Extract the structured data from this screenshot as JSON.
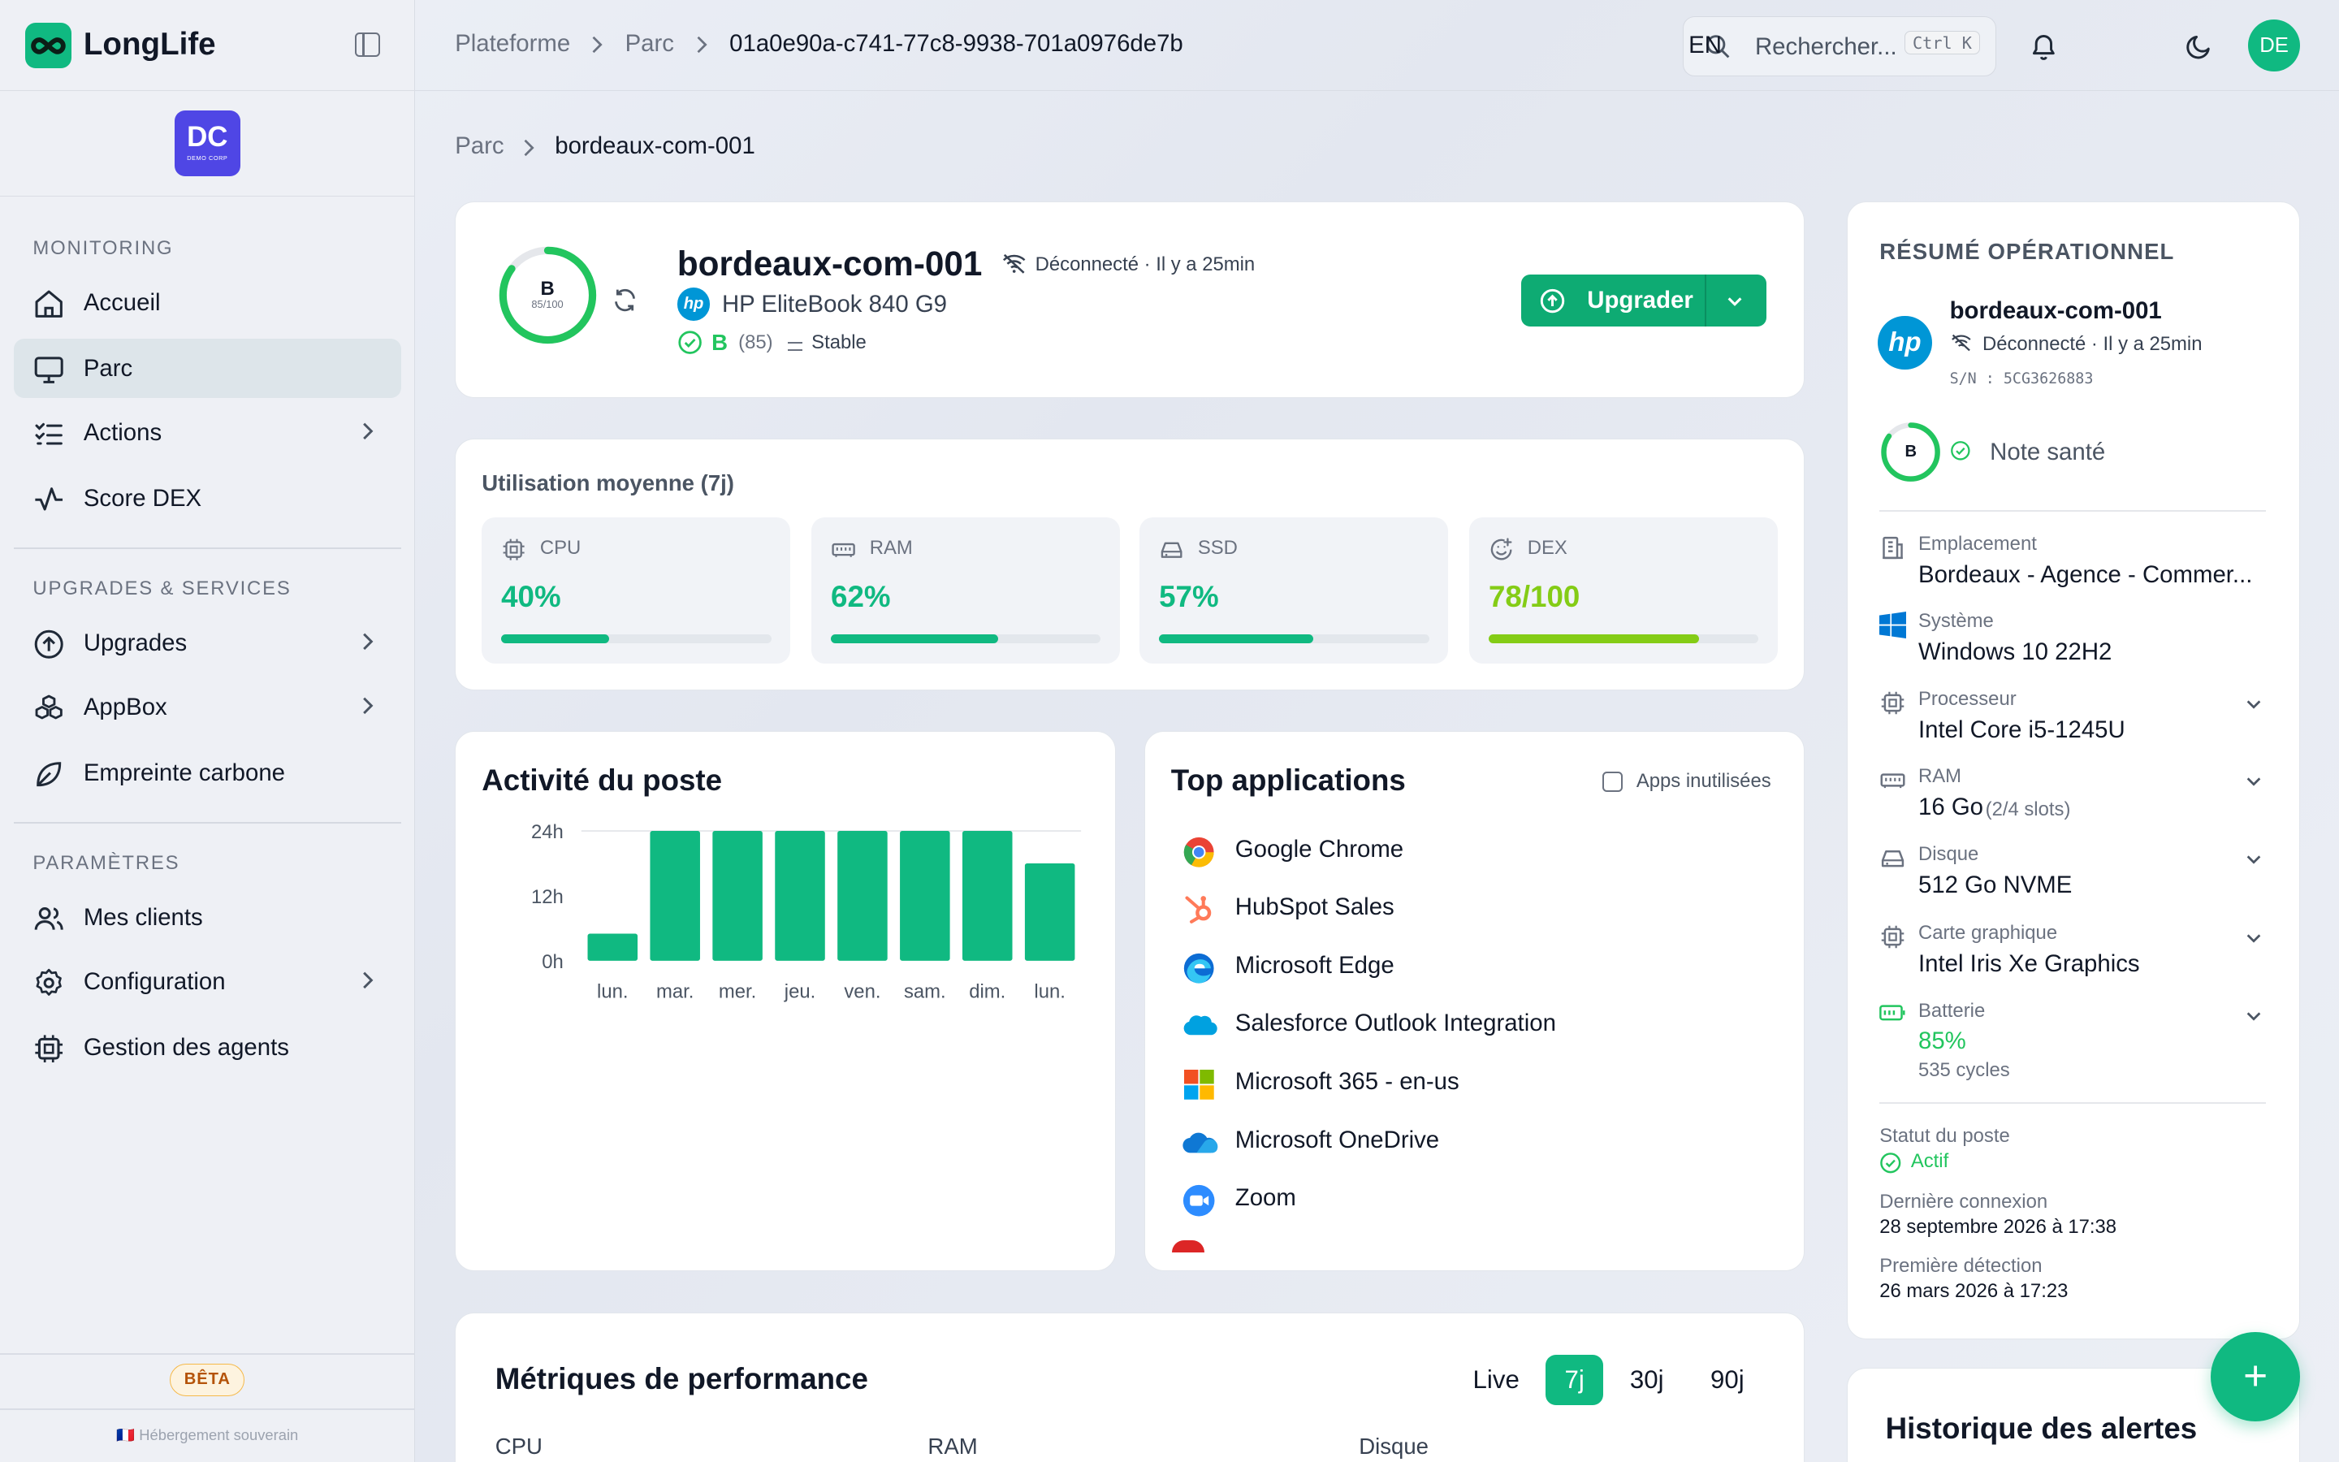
{
  "brand": {
    "name": "LongLife",
    "org_badge_main": "DC",
    "org_badge_sub": "DEMO CORP"
  },
  "sidebar": {
    "sections": [
      {
        "title": "MONITORING",
        "items": [
          {
            "label": "Accueil",
            "icon": "home-icon"
          },
          {
            "label": "Parc",
            "icon": "monitor-icon",
            "active": true
          },
          {
            "label": "Actions",
            "icon": "list-checks-icon",
            "has_children": true
          },
          {
            "label": "Score DEX",
            "icon": "activity-icon"
          }
        ]
      },
      {
        "title": "UPGRADES & SERVICES",
        "items": [
          {
            "label": "Upgrades",
            "icon": "arrow-up-circle-icon",
            "has_children": true
          },
          {
            "label": "AppBox",
            "icon": "boxes-icon",
            "has_children": true
          },
          {
            "label": "Empreinte carbone",
            "icon": "leaf-icon"
          }
        ]
      },
      {
        "title": "PARAMÈTRES",
        "items": [
          {
            "label": "Mes clients",
            "icon": "users-icon"
          },
          {
            "label": "Configuration",
            "icon": "settings-icon",
            "has_children": true
          },
          {
            "label": "Gestion des agents",
            "icon": "cpu-icon"
          }
        ]
      }
    ],
    "beta_label": "BÊTA",
    "hosting": "🇫🇷 Hébergement souverain"
  },
  "topbar": {
    "breadcrumb": [
      "Plateforme",
      "Parc",
      "01a0e90a-c741-77c8-9938-701a0976de7b"
    ],
    "search_placeholder": "Rechercher...",
    "search_shortcut": "Ctrl K",
    "language": "EN",
    "avatar": "DE"
  },
  "page_breadcrumb": [
    "Parc",
    "bordeaux-com-001"
  ],
  "device": {
    "grade": "B",
    "score_text": "85/100",
    "score": 85,
    "name": "bordeaux-com-001",
    "connection": "Déconnecté · Il y a 25min",
    "model": "HP EliteBook 840 G9",
    "grade_label": "B",
    "grade_score": "(85)",
    "trend": "Stable",
    "upgrade_button": "Upgrader"
  },
  "usage": {
    "title": "Utilisation moyenne (7j)",
    "metrics": [
      {
        "name": "CPU",
        "value": "40%",
        "fraction": 0.4,
        "icon": "cpu-icon",
        "color": "#10b981"
      },
      {
        "name": "RAM",
        "value": "62%",
        "fraction": 0.62,
        "icon": "memory-icon",
        "color": "#10b981"
      },
      {
        "name": "SSD",
        "value": "57%",
        "fraction": 0.57,
        "icon": "hard-drive-icon",
        "color": "#10b981"
      },
      {
        "name": "DEX",
        "value": "78/100",
        "fraction": 0.78,
        "icon": "smile-plus-icon",
        "color": "#84cc16"
      }
    ]
  },
  "activity": {
    "title": "Activité du poste"
  },
  "chart_data": {
    "type": "bar",
    "categories": [
      "lun.",
      "mar.",
      "mer.",
      "jeu.",
      "ven.",
      "sam.",
      "dim.",
      "lun."
    ],
    "values": [
      5,
      24,
      24,
      24,
      24,
      24,
      24,
      18
    ],
    "ylim": [
      0,
      24
    ],
    "yticks": [
      "0h",
      "12h",
      "24h"
    ],
    "color": "#10b981"
  },
  "top_apps": {
    "title": "Top applications",
    "checkbox_label": "Apps inutilisées",
    "apps": [
      {
        "name": "Google Chrome",
        "icon": "chrome-icon"
      },
      {
        "name": "HubSpot Sales",
        "icon": "hubspot-icon"
      },
      {
        "name": "Microsoft Edge",
        "icon": "edge-icon"
      },
      {
        "name": "Salesforce Outlook Integration",
        "icon": "salesforce-icon"
      },
      {
        "name": "Microsoft 365 - en-us",
        "icon": "microsoft-365-icon"
      },
      {
        "name": "Microsoft OneDrive",
        "icon": "onedrive-icon"
      },
      {
        "name": "Zoom",
        "icon": "zoom-icon"
      }
    ]
  },
  "perf": {
    "title": "Métriques de performance",
    "tabs": [
      "Live",
      "7j",
      "30j",
      "90j"
    ],
    "active_tab": "7j",
    "columns": [
      "CPU",
      "RAM",
      "Disque"
    ]
  },
  "summary": {
    "title": "RÉSUMÉ OPÉRATIONNEL",
    "device_name": "bordeaux-com-001",
    "connection": "Déconnecté · Il y a 25min",
    "serial": "S/N : 5CG3626883",
    "grade": "B",
    "health_label": "Note santé",
    "rows": [
      {
        "label": "Emplacement",
        "value": "Bordeaux - Agence - Commer...",
        "icon": "building-icon"
      },
      {
        "label": "Système",
        "value": "Windows 10 22H2",
        "icon": "windows-icon"
      },
      {
        "label": "Processeur",
        "value": "Intel Core i5-1245U",
        "icon": "cpu-icon",
        "expandable": true
      },
      {
        "label": "RAM",
        "value": "16 Go",
        "extra": "(2/4 slots)",
        "icon": "memory-icon",
        "expandable": true
      },
      {
        "label": "Disque",
        "value": "512 Go NVME",
        "icon": "hard-drive-icon",
        "expandable": true
      },
      {
        "label": "Carte graphique",
        "value": "Intel Iris Xe Graphics",
        "icon": "gpu-icon",
        "expandable": true
      },
      {
        "label": "Batterie",
        "value": "85%",
        "extra": "535 cycles",
        "icon": "battery-icon",
        "expandable": true
      }
    ],
    "status_label": "Statut du poste",
    "status_value": "Actif",
    "last_conn_label": "Dernière connexion",
    "last_conn_value": "28 septembre 2026 à 17:38",
    "first_det_label": "Première détection",
    "first_det_value": "26 mars 2026 à 17:23"
  },
  "alerts": {
    "title": "Historique des alertes"
  }
}
